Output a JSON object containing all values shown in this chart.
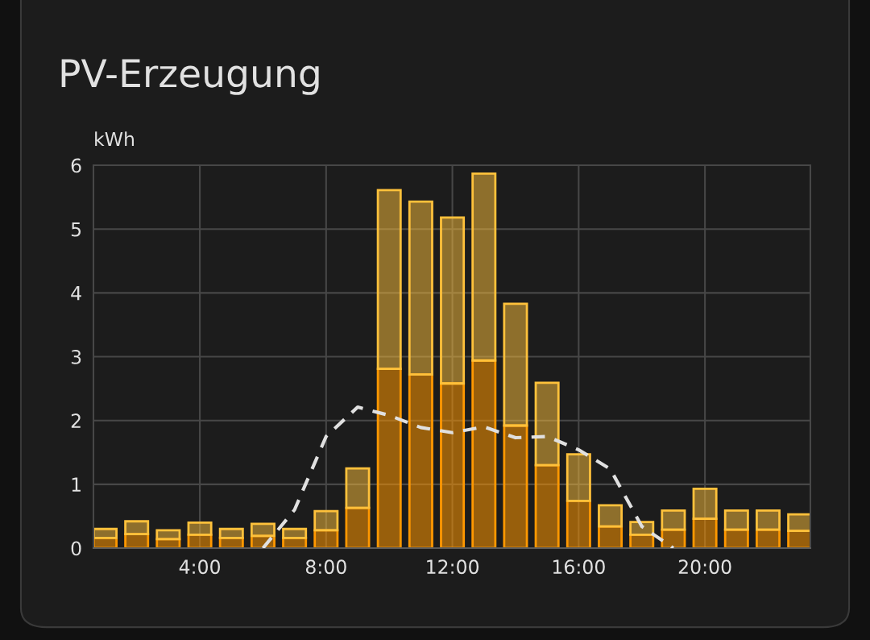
{
  "chart_data": {
    "type": "bar",
    "title": "PV-Erzeugung",
    "ylabel": "kWh",
    "stacked": true,
    "grid": true,
    "legend": false,
    "x": [
      1,
      2,
      3,
      4,
      5,
      6,
      7,
      8,
      9,
      10,
      11,
      12,
      13,
      14,
      15,
      16,
      17,
      18,
      19,
      20,
      21,
      22,
      23
    ],
    "xlim": [
      0.63,
      23.34
    ],
    "xticks": [
      {
        "value": 4,
        "label": "4:00"
      },
      {
        "value": 8,
        "label": "8:00"
      },
      {
        "value": 12,
        "label": "12:00"
      },
      {
        "value": 16,
        "label": "16:00"
      },
      {
        "value": 20,
        "label": "20:00"
      }
    ],
    "ylim": [
      0,
      6
    ],
    "yticks": [
      0,
      1,
      2,
      3,
      4,
      5,
      6
    ],
    "series": [
      {
        "color": "#ff9800",
        "values": [
          0.16,
          0.22,
          0.14,
          0.21,
          0.16,
          0.19,
          0.16,
          0.28,
          0.63,
          2.81,
          2.72,
          2.58,
          2.94,
          1.92,
          1.3,
          0.74,
          0.34,
          0.21,
          0.29,
          0.46,
          0.29,
          0.29,
          0.27
        ]
      },
      {
        "color": "#ffc13b",
        "values": [
          0.14,
          0.2,
          0.14,
          0.19,
          0.14,
          0.19,
          0.14,
          0.3,
          0.62,
          2.8,
          2.71,
          2.6,
          2.93,
          1.91,
          1.29,
          0.73,
          0.33,
          0.2,
          0.3,
          0.47,
          0.3,
          0.3,
          0.26
        ]
      },
      {
        "type": "line",
        "color": "#e0e0e0",
        "line_style": "dashed",
        "marker": "none",
        "x": [
          6,
          7,
          8,
          9,
          10,
          11,
          12,
          13,
          14,
          15,
          16,
          17,
          18,
          19
        ],
        "values": [
          0,
          0.6,
          1.75,
          2.21,
          2.08,
          1.89,
          1.81,
          1.9,
          1.73,
          1.75,
          1.54,
          1.24,
          0.34,
          0
        ]
      }
    ]
  }
}
